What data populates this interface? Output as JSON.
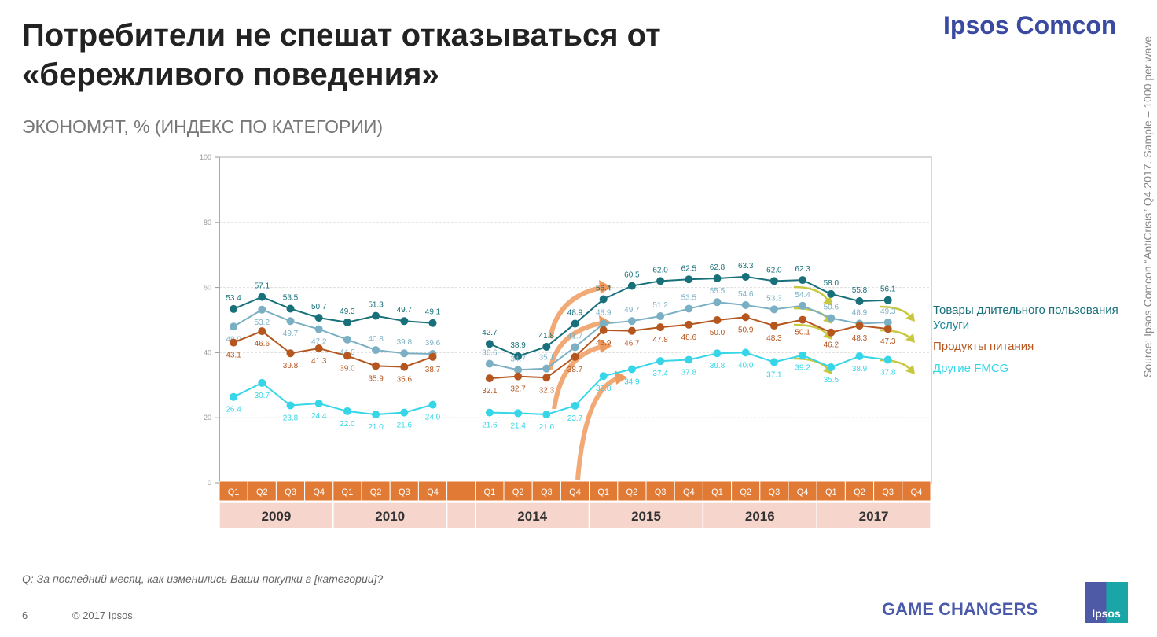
{
  "header": {
    "title_line1": "Потребители не спешат отказываться от",
    "title_line2": "«бережливого поведения»",
    "subtitle": "ЭКОНОМЯТ, % (ИНДЕКС ПО КАТЕГОРИИ)",
    "brand": "Ipsos Comcon"
  },
  "source": "Source: Ipsos Comcon “AntiCrisis” Q4 2017. Sample – 1000 per wave",
  "footer": {
    "question": "Q: За последний месяц, как изменились Ваши покупки в [категории]?",
    "page": "6",
    "copyright": "© 2017 Ipsos.",
    "tagline": "GAME CHANGERS",
    "logo": "Ipsos"
  },
  "chart_data": {
    "type": "line",
    "title": "ЭКОНОМЯТ, % (ИНДЕКС ПО КАТЕГОРИИ)",
    "ylim": [
      0,
      100
    ],
    "yticks": [
      "0",
      "20",
      "40",
      "60",
      "80",
      "100"
    ],
    "grid": true,
    "legend": "right",
    "years": [
      {
        "label": "2009",
        "quarters": [
          "Q1",
          "Q2",
          "Q3",
          "Q4"
        ]
      },
      {
        "label": "2010",
        "quarters": [
          "Q1",
          "Q2",
          "Q3",
          "Q4"
        ]
      },
      {
        "label": "",
        "quarters": [
          ""
        ]
      },
      {
        "label": "2014",
        "quarters": [
          "Q1",
          "Q2",
          "Q3",
          "Q4"
        ]
      },
      {
        "label": "2015",
        "quarters": [
          "Q1",
          "Q2",
          "Q3",
          "Q4"
        ]
      },
      {
        "label": "2016",
        "quarters": [
          "Q1",
          "Q2",
          "Q3",
          "Q4"
        ]
      },
      {
        "label": "2017",
        "quarters": [
          "Q1",
          "Q2",
          "Q3",
          "Q4"
        ]
      }
    ],
    "series": [
      {
        "name": "Товары длительного пользования",
        "color": "#17707a",
        "values": [
          53.4,
          57.1,
          53.5,
          50.7,
          49.3,
          51.3,
          49.7,
          49.1,
          null,
          42.7,
          38.9,
          41.8,
          48.9,
          56.4,
          60.5,
          62.0,
          62.5,
          62.8,
          63.3,
          62.0,
          62.3,
          58.0,
          55.8,
          56.1
        ]
      },
      {
        "name": "Услуги",
        "color": "#7bb0c4",
        "values": [
          48.0,
          53.2,
          49.7,
          47.2,
          44.0,
          40.8,
          39.8,
          39.6,
          null,
          36.6,
          34.7,
          35.1,
          41.7,
          48.9,
          49.7,
          51.2,
          53.5,
          55.5,
          54.6,
          53.3,
          54.4,
          50.6,
          48.9,
          49.3
        ]
      },
      {
        "name": "Продукты питания",
        "color": "#b5561f",
        "values": [
          43.1,
          46.6,
          39.8,
          41.3,
          39.0,
          35.9,
          35.6,
          38.7,
          null,
          32.1,
          32.7,
          32.3,
          38.7,
          46.9,
          46.7,
          47.8,
          48.6,
          50.0,
          50.9,
          48.3,
          50.1,
          46.2,
          48.3,
          47.3
        ]
      },
      {
        "name": "Другие FMCG",
        "color": "#36d6e8",
        "values": [
          26.4,
          30.7,
          23.8,
          24.4,
          22.0,
          21.0,
          21.6,
          24.0,
          null,
          21.6,
          21.4,
          21.0,
          23.7,
          32.8,
          34.9,
          37.4,
          37.8,
          39.8,
          40.0,
          37.1,
          39.2,
          35.5,
          38.9,
          37.8
        ]
      }
    ],
    "colors": {
      "quarter_row": "#e07a35",
      "year_row": "#f5d5cc",
      "growth_arrow": "#ee9a5e",
      "decline_arrow": "#c8c840"
    }
  }
}
